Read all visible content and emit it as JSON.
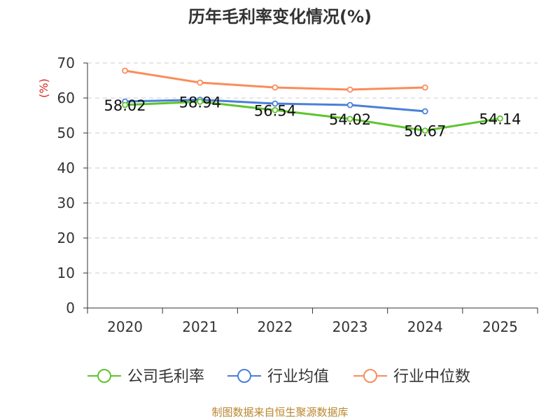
{
  "chart_data": {
    "type": "line",
    "title": "历年毛利率变化情况(%)",
    "ylabel": "(%)",
    "xlabel": "",
    "ylim": [
      0,
      70
    ],
    "yticks": [
      0,
      10,
      20,
      30,
      40,
      50,
      60,
      70
    ],
    "categories": [
      "2020",
      "2021",
      "2022",
      "2023",
      "2024",
      "2025"
    ],
    "grid": true,
    "legend_position": "bottom",
    "series": [
      {
        "name": "公司毛利率",
        "color": "#5ec42d",
        "values": [
          58.02,
          58.94,
          56.54,
          54.02,
          50.67,
          54.14
        ],
        "labels": [
          "58.02",
          "58.94",
          "56.54",
          "54.02",
          "50.67",
          "54.14"
        ]
      },
      {
        "name": "行业均值",
        "color": "#4a7fd8",
        "values": [
          59.0,
          59.5,
          58.4,
          58.0,
          56.2,
          null
        ]
      },
      {
        "name": "行业中位数",
        "color": "#fa8c5a",
        "values": [
          67.8,
          64.4,
          63.0,
          62.4,
          63.0,
          null
        ]
      }
    ]
  },
  "source_text": "制图数据来自恒生聚源数据库"
}
